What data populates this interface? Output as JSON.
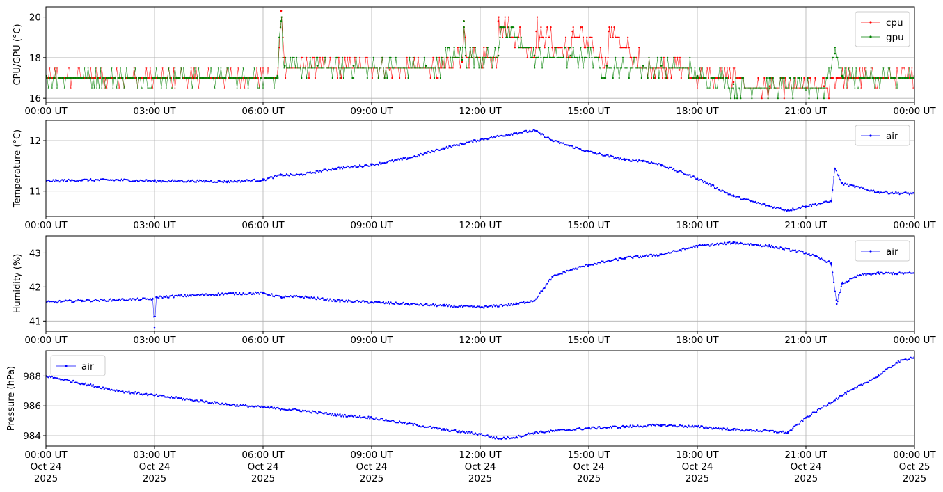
{
  "chart_data": [
    {
      "type": "line",
      "ylabel": "CPU/GPU (°C)",
      "ylim": [
        15.8,
        20.5
      ],
      "yticks": [
        "16",
        "18",
        "20"
      ],
      "ytick_values": [
        16,
        18,
        20
      ],
      "xticks": [
        "00:00 UT",
        "03:00 UT",
        "06:00 UT",
        "09:00 UT",
        "12:00 UT",
        "15:00 UT",
        "18:00 UT",
        "21:00 UT",
        "00:00 UT"
      ],
      "grid": true,
      "legend": "top-right",
      "series": [
        {
          "name": "cpu",
          "color": "#ff0000",
          "points": [
            [
              0,
              17.1
            ],
            [
              6.4,
              17.1
            ],
            [
              6.5,
              20.3
            ],
            [
              6.6,
              17.6
            ],
            [
              7.5,
              17.6
            ],
            [
              8.5,
              17.6
            ],
            [
              9.5,
              17.4
            ],
            [
              10.5,
              17.6
            ],
            [
              11.5,
              17.8
            ],
            [
              11.55,
              19.8
            ],
            [
              11.6,
              18.1
            ],
            [
              12.5,
              18.1
            ],
            [
              12.5,
              19.8
            ],
            [
              13.5,
              18.1
            ],
            [
              13.55,
              19.3
            ],
            [
              14.5,
              18.1
            ],
            [
              14.55,
              19.3
            ],
            [
              15.5,
              17.6
            ],
            [
              15.55,
              19.3
            ],
            [
              16.5,
              17.6
            ],
            [
              17,
              17.6
            ],
            [
              17.5,
              17.4
            ],
            [
              18,
              17.1
            ],
            [
              19,
              16.8
            ],
            [
              20,
              16.6
            ],
            [
              21,
              16.5
            ],
            [
              21.5,
              16.6
            ],
            [
              22,
              17.1
            ],
            [
              24,
              17.1
            ]
          ]
        },
        {
          "name": "gpu",
          "color": "#008000",
          "points": [
            [
              0,
              17.1
            ],
            [
              6.4,
              17.1
            ],
            [
              6.5,
              19.8
            ],
            [
              6.6,
              17.6
            ],
            [
              7.5,
              17.6
            ],
            [
              8.5,
              17.6
            ],
            [
              9.5,
              17.5
            ],
            [
              10.5,
              17.6
            ],
            [
              11.5,
              17.9
            ],
            [
              11.55,
              19.8
            ],
            [
              11.6,
              18.1
            ],
            [
              12.5,
              18.1
            ],
            [
              12.55,
              19.5
            ],
            [
              13.5,
              18.1
            ],
            [
              14.5,
              18.1
            ],
            [
              15.5,
              17.6
            ],
            [
              16.5,
              17.6
            ],
            [
              17,
              17.6
            ],
            [
              17.5,
              17.5
            ],
            [
              18,
              17.1
            ],
            [
              19,
              16.7
            ],
            [
              20,
              16.5
            ],
            [
              21,
              16.4
            ],
            [
              21.5,
              16.5
            ],
            [
              21.8,
              18.2
            ],
            [
              22,
              17.1
            ],
            [
              24,
              17.1
            ]
          ]
        }
      ]
    },
    {
      "type": "line",
      "ylabel": "Temperature (°C)",
      "ylim": [
        10.5,
        12.4
      ],
      "yticks": [
        "11",
        "12"
      ],
      "ytick_values": [
        11,
        12
      ],
      "xticks": [
        "00:00 UT",
        "03:00 UT",
        "06:00 UT",
        "09:00 UT",
        "12:00 UT",
        "15:00 UT",
        "18:00 UT",
        "21:00 UT",
        "00:00 UT"
      ],
      "grid": true,
      "legend": "top-right",
      "series": [
        {
          "name": "air",
          "color": "#0000ff",
          "points": [
            [
              0,
              11.2
            ],
            [
              1,
              11.22
            ],
            [
              2,
              11.22
            ],
            [
              3,
              11.2
            ],
            [
              4,
              11.2
            ],
            [
              5,
              11.19
            ],
            [
              6,
              11.22
            ],
            [
              6.5,
              11.32
            ],
            [
              7,
              11.32
            ],
            [
              8,
              11.45
            ],
            [
              9,
              11.52
            ],
            [
              10,
              11.65
            ],
            [
              11,
              11.85
            ],
            [
              12,
              12.02
            ],
            [
              13,
              12.15
            ],
            [
              13.5,
              12.2
            ],
            [
              14,
              12.0
            ],
            [
              15,
              11.78
            ],
            [
              16,
              11.62
            ],
            [
              16.5,
              11.6
            ],
            [
              17,
              11.52
            ],
            [
              18,
              11.25
            ],
            [
              19,
              10.9
            ],
            [
              20,
              10.7
            ],
            [
              20.5,
              10.62
            ],
            [
              21,
              10.7
            ],
            [
              21.7,
              10.8
            ],
            [
              21.8,
              11.45
            ],
            [
              22,
              11.15
            ],
            [
              23,
              10.98
            ],
            [
              24,
              10.95
            ]
          ]
        }
      ]
    },
    {
      "type": "line",
      "ylabel": "Humidity (%)",
      "ylim": [
        40.7,
        43.5
      ],
      "yticks": [
        "41",
        "42",
        "43"
      ],
      "ytick_values": [
        41,
        42,
        43
      ],
      "xticks": [
        "00:00 UT",
        "03:00 UT",
        "06:00 UT",
        "09:00 UT",
        "12:00 UT",
        "15:00 UT",
        "18:00 UT",
        "21:00 UT",
        "00:00 UT"
      ],
      "grid": true,
      "legend": "top-right",
      "series": [
        {
          "name": "air",
          "color": "#0000ff",
          "points": [
            [
              0,
              41.55
            ],
            [
              1,
              41.6
            ],
            [
              2,
              41.62
            ],
            [
              2.95,
              41.65
            ],
            [
              3,
              40.8
            ],
            [
              3.05,
              41.7
            ],
            [
              4,
              41.75
            ],
            [
              5,
              41.8
            ],
            [
              6,
              41.82
            ],
            [
              6.5,
              41.7
            ],
            [
              7,
              41.72
            ],
            [
              8,
              41.6
            ],
            [
              9,
              41.55
            ],
            [
              10,
              41.5
            ],
            [
              11,
              41.45
            ],
            [
              12,
              41.4
            ],
            [
              13,
              41.5
            ],
            [
              13.5,
              41.6
            ],
            [
              14,
              42.3
            ],
            [
              14.5,
              42.5
            ],
            [
              15,
              42.65
            ],
            [
              16,
              42.85
            ],
            [
              17,
              42.95
            ],
            [
              18,
              43.2
            ],
            [
              19,
              43.3
            ],
            [
              20,
              43.2
            ],
            [
              21,
              43.0
            ],
            [
              21.7,
              42.7
            ],
            [
              21.85,
              41.5
            ],
            [
              22,
              42.1
            ],
            [
              22.5,
              42.35
            ],
            [
              23,
              42.4
            ],
            [
              24,
              42.4
            ]
          ]
        }
      ]
    },
    {
      "type": "line",
      "ylabel": "Pressure (hPa)",
      "ylim": [
        983.3,
        989.7
      ],
      "yticks": [
        "984",
        "986",
        "988"
      ],
      "ytick_values": [
        984,
        986,
        988
      ],
      "xticks": [
        "00:00 UT\nOct 24\n2025",
        "03:00 UT\nOct 24\n2025",
        "06:00 UT\nOct 24\n2025",
        "09:00 UT\nOct 24\n2025",
        "12:00 UT\nOct 24\n2025",
        "15:00 UT\nOct 24\n2025",
        "18:00 UT\nOct 24\n2025",
        "21:00 UT\nOct 24\n2025",
        "00:00 UT\nOct 25\n2025"
      ],
      "grid": true,
      "legend": "top-left",
      "series": [
        {
          "name": "air",
          "color": "#0000ff",
          "points": [
            [
              0,
              988.0
            ],
            [
              1,
              987.5
            ],
            [
              2,
              987.0
            ],
            [
              3,
              986.7
            ],
            [
              4,
              986.4
            ],
            [
              5,
              986.1
            ],
            [
              6,
              985.9
            ],
            [
              7,
              985.7
            ],
            [
              8,
              985.4
            ],
            [
              9,
              985.2
            ],
            [
              10,
              984.8
            ],
            [
              11,
              984.4
            ],
            [
              12,
              984.1
            ],
            [
              12.5,
              983.8
            ],
            [
              13,
              983.9
            ],
            [
              13.5,
              984.2
            ],
            [
              14,
              984.3
            ],
            [
              15,
              984.5
            ],
            [
              16,
              984.6
            ],
            [
              17,
              984.7
            ],
            [
              18,
              984.6
            ],
            [
              19,
              984.4
            ],
            [
              20,
              984.3
            ],
            [
              20.5,
              984.2
            ],
            [
              21,
              985.2
            ],
            [
              22,
              986.7
            ],
            [
              23,
              988.0
            ],
            [
              23.5,
              988.9
            ],
            [
              24,
              989.3
            ]
          ]
        }
      ]
    }
  ]
}
